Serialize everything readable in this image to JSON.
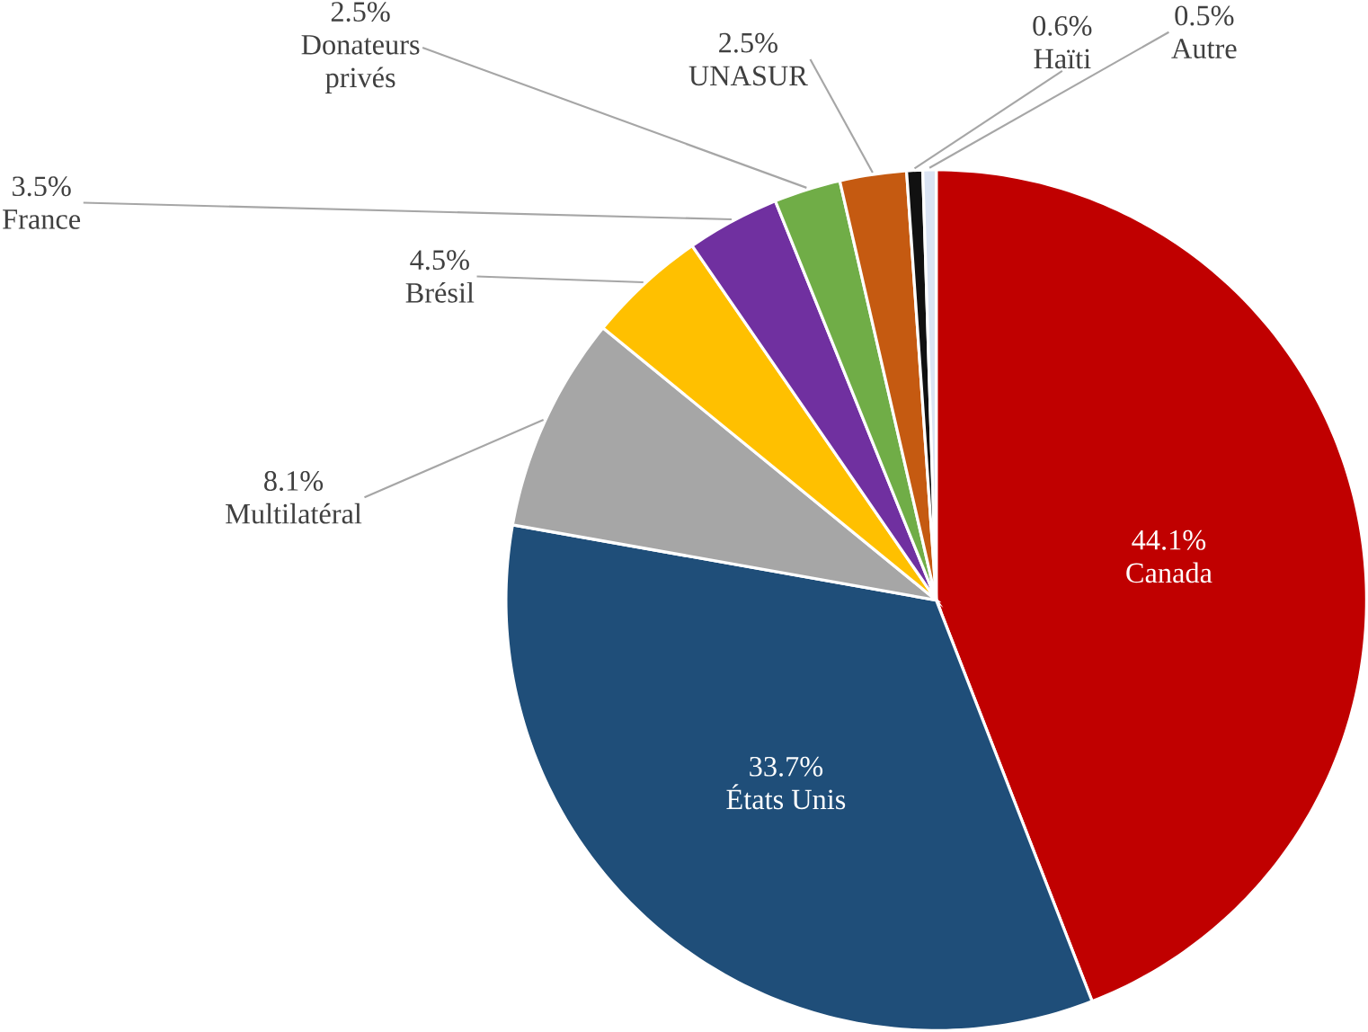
{
  "chart_data": {
    "type": "pie",
    "categories": [
      "Canada",
      "États Unis",
      "Multilatéral",
      "Brésil",
      "France",
      "Donateurs privés",
      "UNASUR",
      "Haïti",
      "Autre"
    ],
    "values": [
      44.1,
      33.7,
      8.1,
      4.5,
      3.5,
      2.5,
      2.5,
      0.6,
      0.5
    ],
    "value_labels": [
      "44.1%",
      "33.7%",
      "8.1%",
      "4.5%",
      "3.5%",
      "2.5%",
      "2.5%",
      "0.6%",
      "0.5%"
    ],
    "colors": [
      "#c00000",
      "#1f4e79",
      "#a6a6a6",
      "#ffc000",
      "#7030a0",
      "#70ad47",
      "#c55a11",
      "#111111",
      "#dae3f3"
    ]
  }
}
